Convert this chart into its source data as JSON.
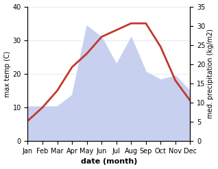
{
  "months": [
    "Jan",
    "Feb",
    "Mar",
    "Apr",
    "May",
    "Jun",
    "Jul",
    "Aug",
    "Sep",
    "Oct",
    "Nov",
    "Dec"
  ],
  "x": [
    1,
    2,
    3,
    4,
    5,
    6,
    7,
    8,
    9,
    10,
    11,
    12
  ],
  "temp": [
    6,
    10,
    15,
    22,
    26,
    31,
    33,
    35,
    35,
    28,
    18,
    12
  ],
  "precip": [
    9,
    9,
    9,
    12,
    30,
    27,
    20,
    27,
    18,
    16,
    17,
    13
  ],
  "temp_color": "#c0392b",
  "precip_fill_color": "#c8d0f0",
  "precip_edge_color": "#b0bce8",
  "temp_ylim": [
    0,
    40
  ],
  "precip_ylim": [
    0,
    35
  ],
  "xlabel": "date (month)",
  "ylabel_left": "max temp (C)",
  "ylabel_right": "med. precipitation (kg/m2)",
  "bg_color": "#ffffff",
  "temp_linewidth": 2.0
}
